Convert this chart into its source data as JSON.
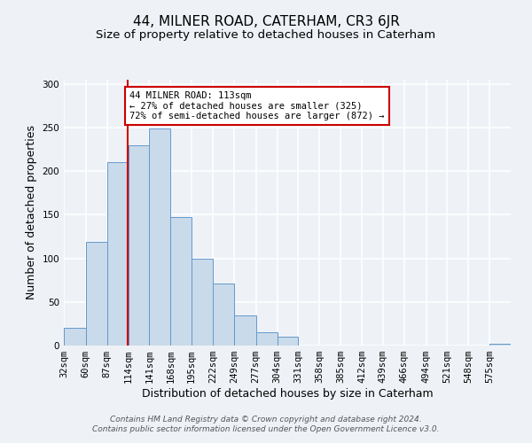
{
  "title": "44, MILNER ROAD, CATERHAM, CR3 6JR",
  "subtitle": "Size of property relative to detached houses in Caterham",
  "xlabel": "Distribution of detached houses by size in Caterham",
  "ylabel": "Number of detached properties",
  "bin_labels": [
    "32sqm",
    "60sqm",
    "87sqm",
    "114sqm",
    "141sqm",
    "168sqm",
    "195sqm",
    "222sqm",
    "249sqm",
    "277sqm",
    "304sqm",
    "331sqm",
    "358sqm",
    "385sqm",
    "412sqm",
    "439sqm",
    "466sqm",
    "494sqm",
    "521sqm",
    "548sqm",
    "575sqm"
  ],
  "bin_edges": [
    32,
    60,
    87,
    114,
    141,
    168,
    195,
    222,
    249,
    277,
    304,
    331,
    358,
    385,
    412,
    439,
    466,
    494,
    521,
    548,
    575
  ],
  "bar_heights": [
    20,
    119,
    210,
    230,
    249,
    147,
    100,
    71,
    35,
    15,
    10,
    0,
    0,
    0,
    0,
    0,
    0,
    0,
    0,
    0,
    2
  ],
  "bar_color": "#c9daea",
  "bar_edge_color": "#6699cc",
  "ylim": [
    0,
    305
  ],
  "yticks": [
    0,
    50,
    100,
    150,
    200,
    250,
    300
  ],
  "property_sqm": 113,
  "annotation_title": "44 MILNER ROAD: 113sqm",
  "annotation_line1": "← 27% of detached houses are smaller (325)",
  "annotation_line2": "72% of semi-detached houses are larger (872) →",
  "annotation_box_color": "#ffffff",
  "annotation_box_edge": "#cc0000",
  "vline_color": "#cc0000",
  "footer1": "Contains HM Land Registry data © Crown copyright and database right 2024.",
  "footer2": "Contains public sector information licensed under the Open Government Licence v3.0.",
  "background_color": "#eef2f7",
  "grid_color": "#ffffff",
  "title_fontsize": 11,
  "subtitle_fontsize": 9.5,
  "axis_label_fontsize": 9,
  "tick_fontsize": 7.5,
  "footer_fontsize": 6.5
}
